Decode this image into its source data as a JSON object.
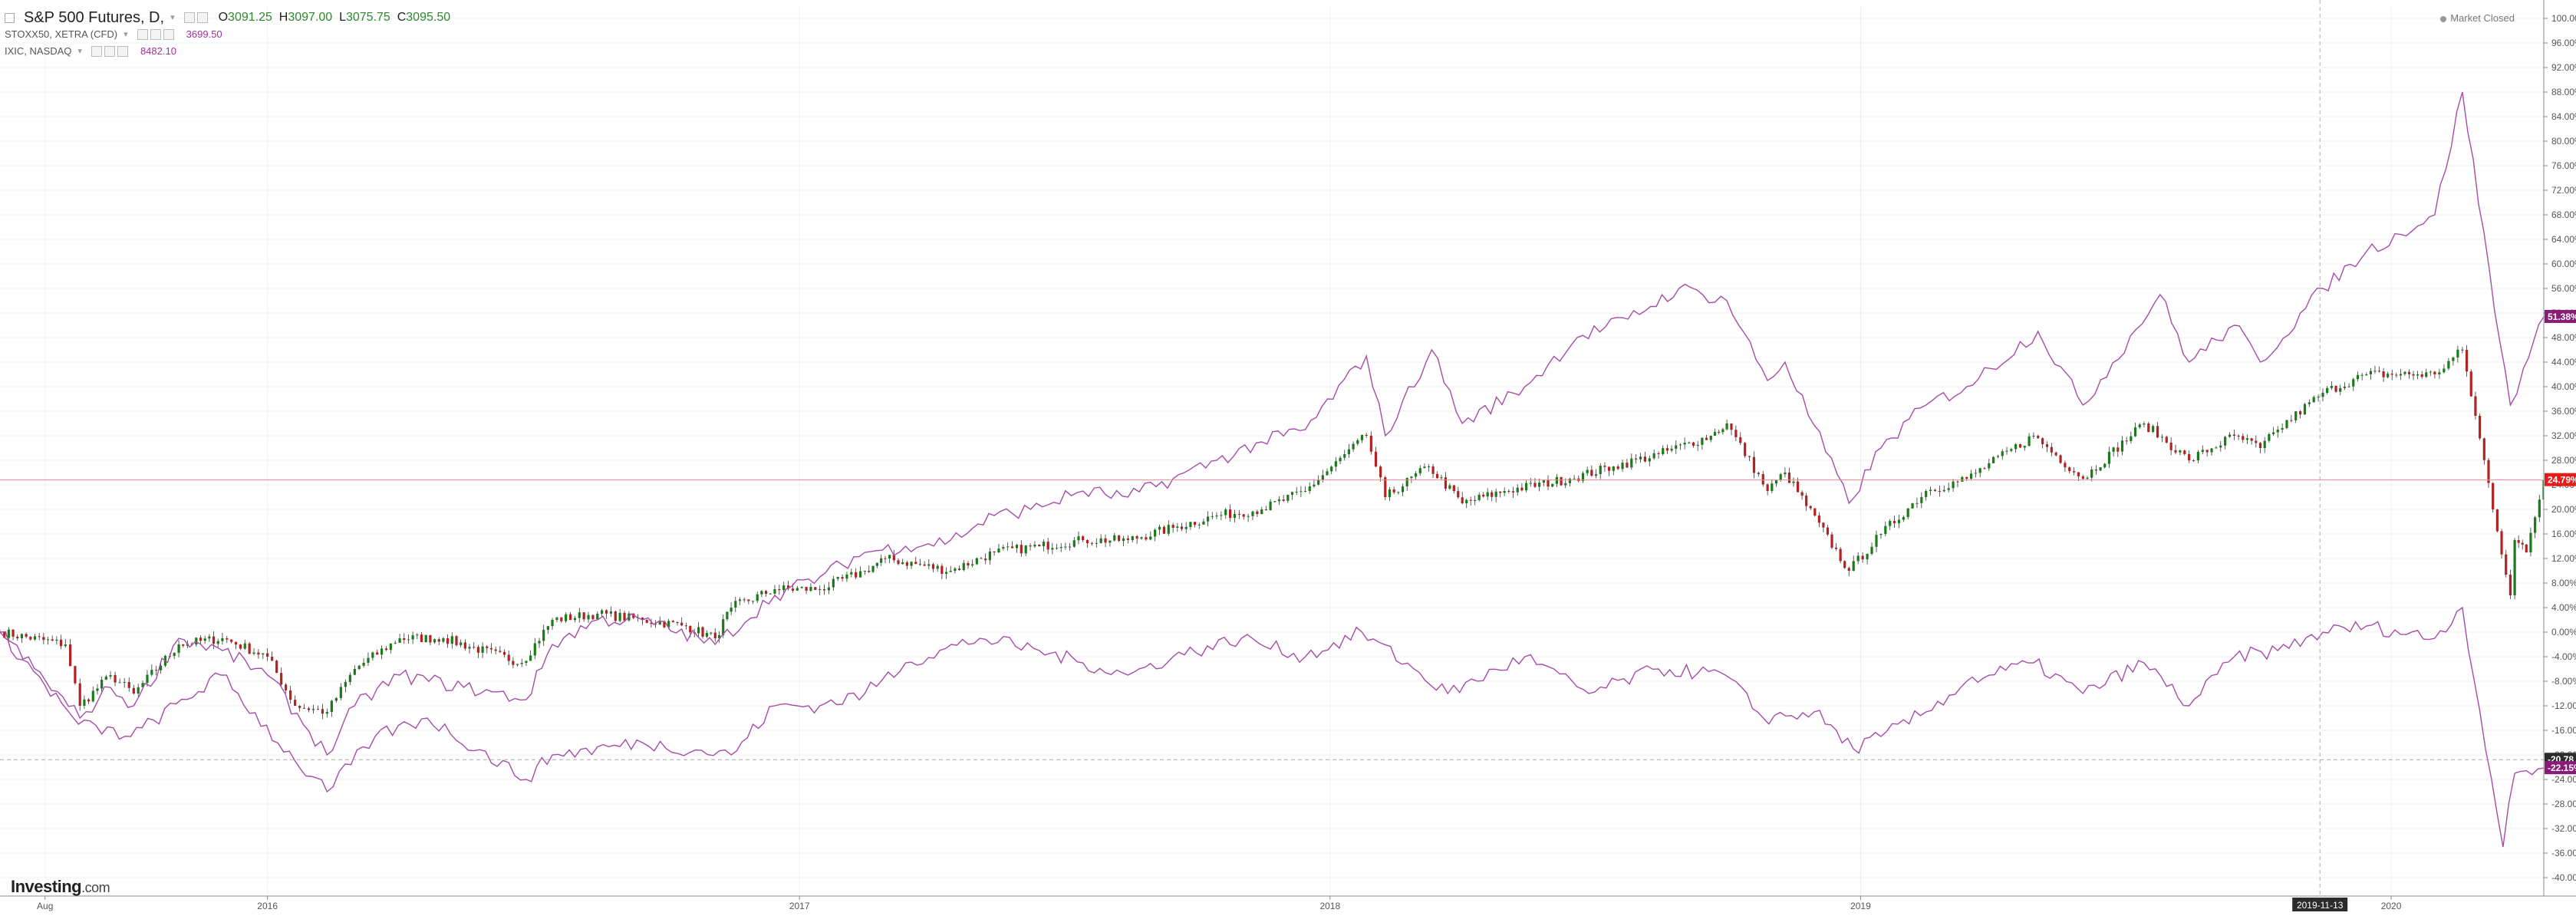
{
  "legend": {
    "main": {
      "name": "S&P 500 Futures, D,",
      "o_label": "O",
      "o": "3091.25",
      "h_label": "H",
      "h": "3097.00",
      "l_label": "L",
      "l": "3075.75",
      "c_label": "C",
      "c": "3095.50"
    },
    "stoxx": {
      "name": "STOXX50, XETRA (CFD)",
      "value": "3699.50"
    },
    "ixic": {
      "name": "IXIC, NASDAQ",
      "value": "8482.10"
    }
  },
  "status": "Market Closed",
  "logo": {
    "main": "Investing",
    "suffix": ".com"
  },
  "crosshair_date": "2019-11-13",
  "colors": {
    "up": "#1b7a1b",
    "down": "#b22222",
    "compare": "#a64ca6",
    "price_line": "#ef8a8a",
    "badge_purple": "#8a1c78",
    "badge_red": "#e61c1c",
    "badge_dark": "#2b2b2b"
  },
  "chart_data": {
    "type": "line",
    "title": "S&P 500 Futures, D,",
    "ylabel": "",
    "y_unit": "%",
    "ylim": [
      -42,
      102
    ],
    "y_ticks": [
      "100.00%",
      "96.00%",
      "92.00%",
      "88.00%",
      "84.00%",
      "80.00%",
      "76.00%",
      "72.00%",
      "68.00%",
      "64.00%",
      "60.00%",
      "56.00%",
      "52.00%",
      "48.00%",
      "44.00%",
      "40.00%",
      "36.00%",
      "32.00%",
      "28.00%",
      "24.00%",
      "20.00%",
      "16.00%",
      "12.00%",
      "8.00%",
      "4.00%",
      "0.00%",
      "-4.00%",
      "-8.00%",
      "-12.00%",
      "-16.00%",
      "-20.00%",
      "-24.00%",
      "-28.00%",
      "-32.00%",
      "-36.00%",
      "-40.00%"
    ],
    "x_ticks": [
      {
        "date": "2015-08-01",
        "label": "Aug"
      },
      {
        "date": "2016-01-01",
        "label": "2016"
      },
      {
        "date": "2017-01-01",
        "label": "2017"
      },
      {
        "date": "2018-01-01",
        "label": "2018"
      },
      {
        "date": "2019-01-01",
        "label": "2019"
      },
      {
        "date": "2020-01-01",
        "label": "2020"
      }
    ],
    "x_range": [
      "2015-07-01",
      "2020-04-15"
    ],
    "grid": true,
    "legend_position": "top-left",
    "series": [
      {
        "name": "S&P 500 Futures, D,",
        "style": "candles",
        "points": [
          [
            "2015-07-01",
            0
          ],
          [
            "2015-08-15",
            -2
          ],
          [
            "2015-08-25",
            -12
          ],
          [
            "2015-09-15",
            -7
          ],
          [
            "2015-10-01",
            -10
          ],
          [
            "2015-11-01",
            -2
          ],
          [
            "2015-12-01",
            -1
          ],
          [
            "2016-01-01",
            -4
          ],
          [
            "2016-01-20",
            -12
          ],
          [
            "2016-02-11",
            -13
          ],
          [
            "2016-03-01",
            -6
          ],
          [
            "2016-04-01",
            -1
          ],
          [
            "2016-05-01",
            -1
          ],
          [
            "2016-06-24",
            -5
          ],
          [
            "2016-07-15",
            2
          ],
          [
            "2016-08-15",
            3
          ],
          [
            "2016-09-15",
            2
          ],
          [
            "2016-10-15",
            1
          ],
          [
            "2016-11-04",
            -1
          ],
          [
            "2016-11-15",
            4
          ],
          [
            "2016-12-15",
            7
          ],
          [
            "2017-01-15",
            7
          ],
          [
            "2017-02-15",
            10
          ],
          [
            "2017-03-01",
            12
          ],
          [
            "2017-04-15",
            10
          ],
          [
            "2017-05-15",
            13
          ],
          [
            "2017-06-15",
            14
          ],
          [
            "2017-07-15",
            15
          ],
          [
            "2017-08-15",
            15
          ],
          [
            "2017-09-15",
            17
          ],
          [
            "2017-10-15",
            19
          ],
          [
            "2017-11-15",
            20
          ],
          [
            "2017-12-15",
            23
          ],
          [
            "2018-01-26",
            32
          ],
          [
            "2018-02-08",
            22
          ],
          [
            "2018-03-10",
            27
          ],
          [
            "2018-04-02",
            21
          ],
          [
            "2018-05-01",
            23
          ],
          [
            "2018-06-15",
            25
          ],
          [
            "2018-07-15",
            27
          ],
          [
            "2018-08-15",
            29
          ],
          [
            "2018-09-20",
            32
          ],
          [
            "2018-10-01",
            34
          ],
          [
            "2018-10-29",
            23
          ],
          [
            "2018-11-10",
            26
          ],
          [
            "2018-12-24",
            10
          ],
          [
            "2019-01-15",
            16
          ],
          [
            "2019-02-15",
            23
          ],
          [
            "2019-03-15",
            25
          ],
          [
            "2019-04-30",
            32
          ],
          [
            "2019-06-03",
            25
          ],
          [
            "2019-07-15",
            34
          ],
          [
            "2019-08-15",
            28
          ],
          [
            "2019-09-15",
            32
          ],
          [
            "2019-10-03",
            30
          ],
          [
            "2019-10-15",
            33
          ],
          [
            "2019-11-15",
            39
          ],
          [
            "2019-12-15",
            42
          ],
          [
            "2020-01-31",
            42
          ],
          [
            "2020-02-19",
            46
          ],
          [
            "2020-03-23",
            6
          ],
          [
            "2020-03-26",
            15
          ],
          [
            "2020-04-03",
            13
          ],
          [
            "2020-04-15",
            24.79
          ]
        ]
      },
      {
        "name": "IXIC, NASDAQ",
        "style": "line",
        "points": [
          [
            "2015-07-01",
            0
          ],
          [
            "2015-08-25",
            -14
          ],
          [
            "2015-09-15",
            -9
          ],
          [
            "2015-10-01",
            -12
          ],
          [
            "2015-11-01",
            -1
          ],
          [
            "2015-12-01",
            -3
          ],
          [
            "2016-01-01",
            -7
          ],
          [
            "2016-02-11",
            -20
          ],
          [
            "2016-03-01",
            -12
          ],
          [
            "2016-04-01",
            -7
          ],
          [
            "2016-05-15",
            -9
          ],
          [
            "2016-06-27",
            -11
          ],
          [
            "2016-07-15",
            -2
          ],
          [
            "2016-08-15",
            2
          ],
          [
            "2016-09-15",
            2
          ],
          [
            "2016-11-04",
            -2
          ],
          [
            "2016-12-15",
            6
          ],
          [
            "2017-01-15",
            9
          ],
          [
            "2017-02-15",
            13
          ],
          [
            "2017-03-15",
            14
          ],
          [
            "2017-04-15",
            15
          ],
          [
            "2017-05-15",
            19
          ],
          [
            "2017-06-09",
            20
          ],
          [
            "2017-07-15",
            23
          ],
          [
            "2017-08-15",
            22
          ],
          [
            "2017-09-15",
            25
          ],
          [
            "2017-10-15",
            28
          ],
          [
            "2017-11-15",
            31
          ],
          [
            "2017-12-15",
            33
          ],
          [
            "2018-01-26",
            45
          ],
          [
            "2018-02-08",
            32
          ],
          [
            "2018-03-12",
            46
          ],
          [
            "2018-04-02",
            34
          ],
          [
            "2018-05-15",
            40
          ],
          [
            "2018-06-20",
            48
          ],
          [
            "2018-07-25",
            51
          ],
          [
            "2018-08-29",
            56
          ],
          [
            "2018-10-01",
            54
          ],
          [
            "2018-10-29",
            41
          ],
          [
            "2018-11-10",
            44
          ],
          [
            "2018-12-24",
            21
          ],
          [
            "2019-01-15",
            30
          ],
          [
            "2019-02-15",
            37
          ],
          [
            "2019-03-15",
            40
          ],
          [
            "2019-05-03",
            49
          ],
          [
            "2019-06-03",
            37
          ],
          [
            "2019-07-26",
            55
          ],
          [
            "2019-08-15",
            44
          ],
          [
            "2019-09-15",
            50
          ],
          [
            "2019-10-03",
            44
          ],
          [
            "2019-11-15",
            56
          ],
          [
            "2019-12-15",
            62
          ],
          [
            "2020-01-31",
            68
          ],
          [
            "2020-02-19",
            88
          ],
          [
            "2020-03-16",
            47
          ],
          [
            "2020-03-23",
            37
          ],
          [
            "2020-04-01",
            43
          ],
          [
            "2020-04-15",
            51.38
          ]
        ]
      },
      {
        "name": "STOXX50, XETRA (CFD)",
        "style": "line",
        "points": [
          [
            "2015-07-01",
            0
          ],
          [
            "2015-08-24",
            -15
          ],
          [
            "2015-09-29",
            -17
          ],
          [
            "2015-11-30",
            -7
          ],
          [
            "2016-01-20",
            -21
          ],
          [
            "2016-02-11",
            -26
          ],
          [
            "2016-03-15",
            -17
          ],
          [
            "2016-04-20",
            -14
          ],
          [
            "2016-06-27",
            -24
          ],
          [
            "2016-07-15",
            -20
          ],
          [
            "2016-09-15",
            -18
          ],
          [
            "2016-11-15",
            -20
          ],
          [
            "2016-12-15",
            -12
          ],
          [
            "2017-01-15",
            -12
          ],
          [
            "2017-02-15",
            -10
          ],
          [
            "2017-03-15",
            -5
          ],
          [
            "2017-05-05",
            -1
          ],
          [
            "2017-06-15",
            -3
          ],
          [
            "2017-07-15",
            -5
          ],
          [
            "2017-08-15",
            -7
          ],
          [
            "2017-09-15",
            -4
          ],
          [
            "2017-11-01",
            -1
          ],
          [
            "2017-12-15",
            -4
          ],
          [
            "2018-01-23",
            0
          ],
          [
            "2018-03-23",
            -10
          ],
          [
            "2018-05-15",
            -4
          ],
          [
            "2018-06-28",
            -10
          ],
          [
            "2018-08-15",
            -6
          ],
          [
            "2018-09-30",
            -7
          ],
          [
            "2018-10-26",
            -14
          ],
          [
            "2018-11-30",
            -13
          ],
          [
            "2018-12-27",
            -19
          ],
          [
            "2019-01-15",
            -17
          ],
          [
            "2019-02-15",
            -13
          ],
          [
            "2019-03-15",
            -8
          ],
          [
            "2019-04-30",
            -5
          ],
          [
            "2019-06-03",
            -10
          ],
          [
            "2019-07-15",
            -5
          ],
          [
            "2019-08-15",
            -12
          ],
          [
            "2019-09-15",
            -4
          ],
          [
            "2019-10-15",
            -3
          ],
          [
            "2019-11-15",
            0
          ],
          [
            "2019-12-15",
            1
          ],
          [
            "2020-01-31",
            -1
          ],
          [
            "2020-02-19",
            4
          ],
          [
            "2020-03-18",
            -35
          ],
          [
            "2020-03-26",
            -23
          ],
          [
            "2020-04-15",
            -22.15
          ]
        ]
      }
    ],
    "price_lines": [
      {
        "value": 24.79,
        "label": "24.79%",
        "badge": "red"
      },
      {
        "value": 51.38,
        "label": "51.38%",
        "badge": "purple"
      },
      {
        "value": -20.78,
        "label": "-20.78",
        "badge": "dark"
      },
      {
        "value": -22.15,
        "label": "-22.15%",
        "badge": "purple"
      }
    ]
  }
}
